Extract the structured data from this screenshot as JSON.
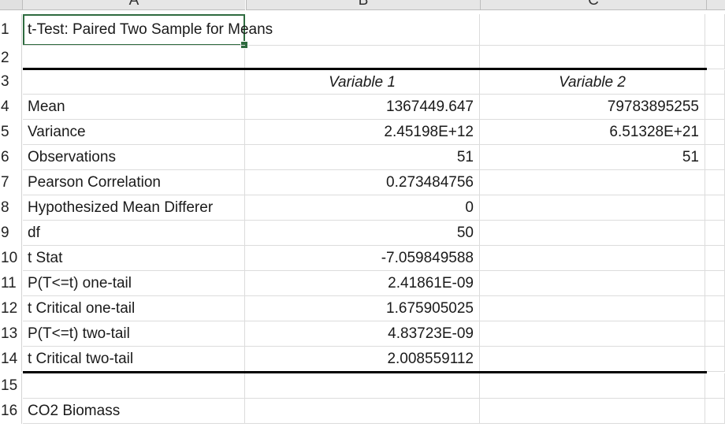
{
  "columns": [
    "A",
    "B",
    "C"
  ],
  "rows": [
    "1",
    "2",
    "3",
    "4",
    "5",
    "6",
    "7",
    "8",
    "9",
    "10",
    "11",
    "12",
    "13",
    "14",
    "15",
    "16"
  ],
  "title": "t-Test: Paired Two Sample for Means",
  "header": {
    "var1": "Variable 1",
    "var2": "Variable 2"
  },
  "stats": [
    {
      "label": "Mean",
      "v1": "1367449.647",
      "v2": "79783895255"
    },
    {
      "label": "Variance",
      "v1": "2.45198E+12",
      "v2": "6.51328E+21"
    },
    {
      "label": "Observations",
      "v1": "51",
      "v2": "51"
    },
    {
      "label": "Pearson Correlation",
      "v1": "0.273484756",
      "v2": ""
    },
    {
      "label": "Hypothesized Mean Differer",
      "v1": "0",
      "v2": ""
    },
    {
      "label": "df",
      "v1": "50",
      "v2": ""
    },
    {
      "label": "t Stat",
      "v1": "-7.059849588",
      "v2": ""
    },
    {
      "label": "P(T<=t) one-tail",
      "v1": "2.41861E-09",
      "v2": ""
    },
    {
      "label": "t Critical one-tail",
      "v1": "1.675905025",
      "v2": ""
    },
    {
      "label": "P(T<=t) two-tail",
      "v1": "4.83723E-09",
      "v2": ""
    },
    {
      "label": "t Critical two-tail",
      "v1": "2.008559112",
      "v2": ""
    }
  ],
  "row16_label": "CO2 Biomass",
  "selection_color": "#2e6b3f"
}
